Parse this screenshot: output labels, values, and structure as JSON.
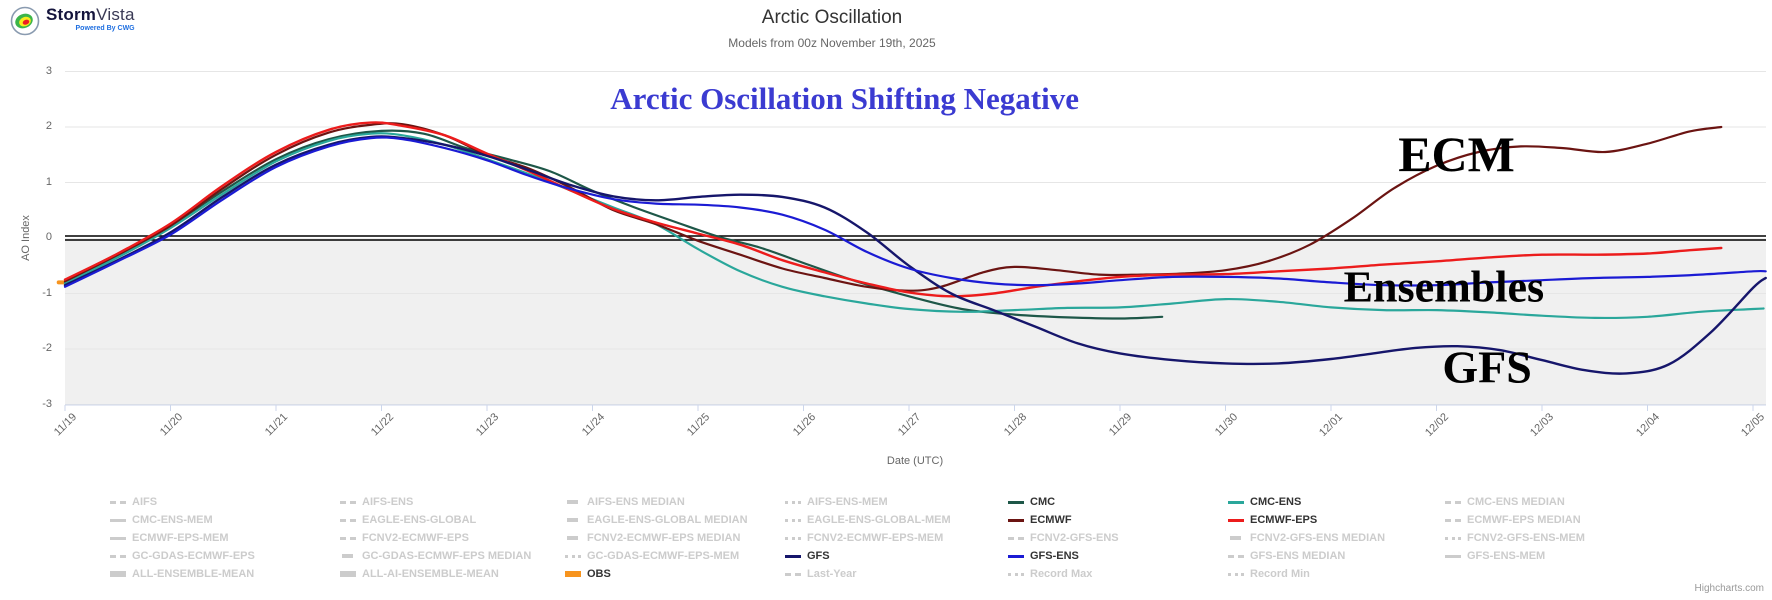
{
  "logo": {
    "brand_storm": "Storm",
    "brand_vista": "Vista",
    "tagline": "Powered By CWG"
  },
  "header": {
    "title": "Arctic Oscillation",
    "subtitle": "Models from 00z November 19th, 2025"
  },
  "credit": "Highcharts.com",
  "chart_data": {
    "type": "line",
    "title": "Arctic Oscillation",
    "subtitle": "Models from 00z November 19th, 2025",
    "xlabel": "Date (UTC)",
    "ylabel": "AO Index",
    "ylim": [
      -3,
      3
    ],
    "yticks": [
      "3",
      "2",
      "1",
      "0",
      "-1",
      "-2",
      "-3"
    ],
    "x_tick_labels": [
      "11/19",
      "11/20",
      "11/21",
      "11/22",
      "11/23",
      "11/24",
      "11/25",
      "11/26",
      "11/27",
      "11/28",
      "11/29",
      "11/30",
      "12/01",
      "12/02",
      "12/03",
      "12/04",
      "12/05"
    ],
    "x_unit_days_from": "11/19 00z",
    "negative_region_shaded": true,
    "zero_line_color": "#000000",
    "band_color": "#f0f0f0",
    "grid_color": "#e6e6e6",
    "axis_line_color": "#ccd6eb",
    "label_color": "#666666",
    "series": [
      {
        "name": "OBS",
        "color": "#f7941e",
        "width": 4,
        "points": [
          [
            -0.06,
            -0.8
          ],
          [
            0,
            -0.8
          ]
        ]
      },
      {
        "name": "CMC",
        "color": "#1e5748",
        "width": 2.2,
        "points": [
          [
            0,
            -0.8
          ],
          [
            0.5,
            -0.33
          ],
          [
            1,
            0.22
          ],
          [
            1.5,
            0.85
          ],
          [
            2,
            1.42
          ],
          [
            2.5,
            1.78
          ],
          [
            3,
            1.93
          ],
          [
            3.4,
            1.88
          ],
          [
            3.8,
            1.62
          ],
          [
            4.2,
            1.42
          ],
          [
            4.6,
            1.2
          ],
          [
            5,
            0.85
          ],
          [
            5.4,
            0.55
          ],
          [
            5.8,
            0.28
          ],
          [
            6.2,
            0.02
          ],
          [
            6.6,
            -0.18
          ],
          [
            7,
            -0.45
          ],
          [
            7.5,
            -0.78
          ],
          [
            8,
            -1.05
          ],
          [
            8.5,
            -1.28
          ],
          [
            9,
            -1.38
          ],
          [
            9.5,
            -1.43
          ],
          [
            10,
            -1.45
          ],
          [
            10.4,
            -1.42
          ]
        ]
      },
      {
        "name": "CMC-ENS",
        "color": "#2aa79b",
        "width": 2.2,
        "points": [
          [
            0,
            -0.82
          ],
          [
            0.5,
            -0.35
          ],
          [
            1,
            0.18
          ],
          [
            1.5,
            0.8
          ],
          [
            2,
            1.38
          ],
          [
            2.5,
            1.75
          ],
          [
            2.9,
            1.88
          ],
          [
            3.2,
            1.85
          ],
          [
            3.6,
            1.68
          ],
          [
            4,
            1.42
          ],
          [
            4.4,
            1.15
          ],
          [
            4.8,
            0.85
          ],
          [
            5.2,
            0.55
          ],
          [
            5.6,
            0.25
          ],
          [
            6,
            -0.2
          ],
          [
            6.4,
            -0.6
          ],
          [
            6.8,
            -0.88
          ],
          [
            7.2,
            -1.05
          ],
          [
            7.6,
            -1.18
          ],
          [
            8,
            -1.28
          ],
          [
            8.5,
            -1.33
          ],
          [
            9,
            -1.3
          ],
          [
            9.5,
            -1.26
          ],
          [
            10,
            -1.25
          ],
          [
            10.5,
            -1.18
          ],
          [
            11,
            -1.1
          ],
          [
            11.5,
            -1.15
          ],
          [
            12,
            -1.25
          ],
          [
            12.5,
            -1.3
          ],
          [
            13,
            -1.3
          ],
          [
            13.5,
            -1.34
          ],
          [
            14,
            -1.4
          ],
          [
            14.5,
            -1.44
          ],
          [
            15,
            -1.42
          ],
          [
            15.5,
            -1.33
          ],
          [
            16,
            -1.28
          ],
          [
            16.1,
            -1.27
          ]
        ]
      },
      {
        "name": "ECMWF",
        "color": "#6b1412",
        "width": 2.2,
        "points": [
          [
            0,
            -0.78
          ],
          [
            0.5,
            -0.3
          ],
          [
            1,
            0.22
          ],
          [
            1.5,
            0.9
          ],
          [
            2,
            1.5
          ],
          [
            2.5,
            1.9
          ],
          [
            2.9,
            2.04
          ],
          [
            3.2,
            2.05
          ],
          [
            3.6,
            1.85
          ],
          [
            4,
            1.5
          ],
          [
            4.4,
            1.25
          ],
          [
            4.8,
            0.9
          ],
          [
            5.2,
            0.5
          ],
          [
            5.6,
            0.25
          ],
          [
            6,
            -0.05
          ],
          [
            6.4,
            -0.3
          ],
          [
            6.8,
            -0.55
          ],
          [
            7.2,
            -0.72
          ],
          [
            7.6,
            -0.88
          ],
          [
            8,
            -0.95
          ],
          [
            8.3,
            -0.88
          ],
          [
            8.7,
            -0.62
          ],
          [
            9,
            -0.52
          ],
          [
            9.4,
            -0.58
          ],
          [
            9.8,
            -0.66
          ],
          [
            10.2,
            -0.66
          ],
          [
            10.6,
            -0.64
          ],
          [
            11,
            -0.58
          ],
          [
            11.4,
            -0.42
          ],
          [
            11.8,
            -0.12
          ],
          [
            12.2,
            0.35
          ],
          [
            12.6,
            0.9
          ],
          [
            13,
            1.3
          ],
          [
            13.4,
            1.55
          ],
          [
            13.8,
            1.65
          ],
          [
            14.2,
            1.62
          ],
          [
            14.6,
            1.55
          ],
          [
            15,
            1.7
          ],
          [
            15.4,
            1.92
          ],
          [
            15.7,
            2.0
          ]
        ]
      },
      {
        "name": "ECMWF-EPS",
        "color": "#ec1c1c",
        "width": 2.4,
        "points": [
          [
            0,
            -0.75
          ],
          [
            0.5,
            -0.28
          ],
          [
            1,
            0.26
          ],
          [
            1.5,
            0.95
          ],
          [
            2,
            1.55
          ],
          [
            2.5,
            1.95
          ],
          [
            2.9,
            2.08
          ],
          [
            3.2,
            2.02
          ],
          [
            3.6,
            1.85
          ],
          [
            4,
            1.52
          ],
          [
            4.4,
            1.2
          ],
          [
            4.8,
            0.85
          ],
          [
            5.2,
            0.52
          ],
          [
            5.6,
            0.28
          ],
          [
            6,
            0.08
          ],
          [
            6.4,
            -0.12
          ],
          [
            6.8,
            -0.4
          ],
          [
            7.2,
            -0.62
          ],
          [
            7.6,
            -0.82
          ],
          [
            8,
            -0.98
          ],
          [
            8.4,
            -1.05
          ],
          [
            8.8,
            -1.0
          ],
          [
            9.2,
            -0.88
          ],
          [
            9.6,
            -0.78
          ],
          [
            10,
            -0.7
          ],
          [
            10.5,
            -0.66
          ],
          [
            11,
            -0.65
          ],
          [
            11.5,
            -0.6
          ],
          [
            12,
            -0.55
          ],
          [
            12.5,
            -0.48
          ],
          [
            13,
            -0.42
          ],
          [
            13.5,
            -0.35
          ],
          [
            14,
            -0.3
          ],
          [
            14.5,
            -0.3
          ],
          [
            15,
            -0.28
          ],
          [
            15.4,
            -0.22
          ],
          [
            15.7,
            -0.18
          ]
        ]
      },
      {
        "name": "GFS",
        "color": "#16166b",
        "width": 2.4,
        "points": [
          [
            0,
            -0.85
          ],
          [
            0.5,
            -0.4
          ],
          [
            1,
            0.1
          ],
          [
            1.5,
            0.75
          ],
          [
            2,
            1.32
          ],
          [
            2.5,
            1.68
          ],
          [
            2.9,
            1.82
          ],
          [
            3.2,
            1.8
          ],
          [
            3.6,
            1.68
          ],
          [
            4,
            1.48
          ],
          [
            4.4,
            1.22
          ],
          [
            4.8,
            0.95
          ],
          [
            5.2,
            0.75
          ],
          [
            5.6,
            0.68
          ],
          [
            6,
            0.74
          ],
          [
            6.4,
            0.78
          ],
          [
            6.8,
            0.74
          ],
          [
            7.2,
            0.55
          ],
          [
            7.6,
            0.1
          ],
          [
            8,
            -0.5
          ],
          [
            8.4,
            -1.0
          ],
          [
            8.8,
            -1.3
          ],
          [
            9.2,
            -1.6
          ],
          [
            9.6,
            -1.9
          ],
          [
            10,
            -2.08
          ],
          [
            10.5,
            -2.2
          ],
          [
            11,
            -2.26
          ],
          [
            11.5,
            -2.26
          ],
          [
            12,
            -2.18
          ],
          [
            12.4,
            -2.08
          ],
          [
            12.8,
            -1.98
          ],
          [
            13.2,
            -1.95
          ],
          [
            13.6,
            -2.02
          ],
          [
            14,
            -2.2
          ],
          [
            14.4,
            -2.38
          ],
          [
            14.8,
            -2.44
          ],
          [
            15.2,
            -2.28
          ],
          [
            15.6,
            -1.7
          ],
          [
            16,
            -0.9
          ],
          [
            16.12,
            -0.72
          ]
        ]
      },
      {
        "name": "GFS-ENS",
        "color": "#1b1bd4",
        "width": 2.2,
        "points": [
          [
            0,
            -0.88
          ],
          [
            0.5,
            -0.42
          ],
          [
            1,
            0.06
          ],
          [
            1.5,
            0.7
          ],
          [
            2,
            1.28
          ],
          [
            2.5,
            1.65
          ],
          [
            2.9,
            1.8
          ],
          [
            3.2,
            1.78
          ],
          [
            3.6,
            1.62
          ],
          [
            4,
            1.4
          ],
          [
            4.4,
            1.12
          ],
          [
            4.8,
            0.88
          ],
          [
            5.2,
            0.7
          ],
          [
            5.6,
            0.62
          ],
          [
            6,
            0.6
          ],
          [
            6.4,
            0.55
          ],
          [
            6.8,
            0.42
          ],
          [
            7.2,
            0.15
          ],
          [
            7.6,
            -0.25
          ],
          [
            8,
            -0.55
          ],
          [
            8.4,
            -0.72
          ],
          [
            8.8,
            -0.82
          ],
          [
            9.2,
            -0.85
          ],
          [
            9.6,
            -0.82
          ],
          [
            10,
            -0.76
          ],
          [
            10.5,
            -0.7
          ],
          [
            11,
            -0.7
          ],
          [
            11.5,
            -0.73
          ],
          [
            12,
            -0.8
          ],
          [
            12.5,
            -0.85
          ],
          [
            13,
            -0.85
          ],
          [
            13.5,
            -0.8
          ],
          [
            14,
            -0.76
          ],
          [
            14.5,
            -0.72
          ],
          [
            15,
            -0.7
          ],
          [
            15.5,
            -0.66
          ],
          [
            16,
            -0.6
          ],
          [
            16.12,
            -0.6
          ]
        ]
      }
    ],
    "annotations": [
      {
        "id": "headline",
        "text": "Arctic Oscillation Shifting Negative",
        "x": 7.39,
        "y": 2.5,
        "color": "#3b3bd1",
        "size": 31
      },
      {
        "id": "ecm",
        "text": "ECM",
        "x": 13.19,
        "y": 1.51,
        "color": "#000000",
        "size": 50
      },
      {
        "id": "ensembles",
        "text": "Ensembles",
        "x": 13.07,
        "y": -0.88,
        "color": "#000000",
        "size": 44
      },
      {
        "id": "gfs",
        "text": "GFS",
        "x": 13.48,
        "y": -2.33,
        "color": "#000000",
        "size": 46
      }
    ],
    "legend_position": "bottom"
  },
  "legend": {
    "active_text_color": "#333333",
    "disabled_color": "#cccccc",
    "rows": [
      [
        {
          "label": "AIFS",
          "style": "dashdot",
          "active": false
        },
        {
          "label": "AIFS-ENS",
          "style": "dashdot",
          "active": false
        },
        {
          "label": "AIFS-ENS MEDIAN",
          "style": "dash",
          "active": false
        },
        {
          "label": "AIFS-ENS-MEM",
          "style": "dotted",
          "active": false
        },
        {
          "label": "CMC",
          "style": "solid",
          "color": "#1e5748",
          "active": true
        },
        {
          "label": "CMC-ENS",
          "style": "solid",
          "color": "#2aa79b",
          "active": true
        },
        {
          "label": "CMC-ENS MEDIAN",
          "style": "dashdot",
          "active": false
        }
      ],
      [
        {
          "label": "CMC-ENS-MEM",
          "style": "solid",
          "active": false
        },
        {
          "label": "EAGLE-ENS-GLOBAL",
          "style": "dashdot",
          "active": false
        },
        {
          "label": "EAGLE-ENS-GLOBAL MEDIAN",
          "style": "dash",
          "active": false
        },
        {
          "label": "EAGLE-ENS-GLOBAL-MEM",
          "style": "dotted",
          "active": false
        },
        {
          "label": "ECMWF",
          "style": "solid",
          "color": "#6b1412",
          "active": true
        },
        {
          "label": "ECMWF-EPS",
          "style": "solid",
          "color": "#ec1c1c",
          "active": true
        },
        {
          "label": "ECMWF-EPS MEDIAN",
          "style": "dashdot",
          "active": false
        }
      ],
      [
        {
          "label": "ECMWF-EPS-MEM",
          "style": "solid",
          "active": false
        },
        {
          "label": "FCNV2-ECMWF-EPS",
          "style": "dashdot",
          "active": false
        },
        {
          "label": "FCNV2-ECMWF-EPS MEDIAN",
          "style": "dash",
          "active": false
        },
        {
          "label": "FCNV2-ECMWF-EPS-MEM",
          "style": "dotted",
          "active": false
        },
        {
          "label": "FCNV2-GFS-ENS",
          "style": "dashdot",
          "active": false
        },
        {
          "label": "FCNV2-GFS-ENS MEDIAN",
          "style": "dash",
          "active": false
        },
        {
          "label": "FCNV2-GFS-ENS-MEM",
          "style": "dotted",
          "active": false
        }
      ],
      [
        {
          "label": "GC-GDAS-ECMWF-EPS",
          "style": "dashdot",
          "active": false
        },
        {
          "label": "GC-GDAS-ECMWF-EPS MEDIAN",
          "style": "dash",
          "active": false
        },
        {
          "label": "GC-GDAS-ECMWF-EPS-MEM",
          "style": "dotted",
          "active": false
        },
        {
          "label": "GFS",
          "style": "solid",
          "color": "#16166b",
          "active": true
        },
        {
          "label": "GFS-ENS",
          "style": "solid",
          "color": "#1b1bd4",
          "active": true
        },
        {
          "label": "GFS-ENS MEDIAN",
          "style": "dashdot",
          "active": false
        },
        {
          "label": "GFS-ENS-MEM",
          "style": "solid",
          "active": false
        }
      ],
      [
        {
          "label": "ALL-ENSEMBLE-MEAN",
          "style": "bar",
          "active": false
        },
        {
          "label": "ALL-AI-ENSEMBLE-MEAN",
          "style": "bar",
          "active": false
        },
        {
          "label": "OBS",
          "style": "bar",
          "color": "#f7941e",
          "active": true
        },
        {
          "label": "Last-Year",
          "style": "dashdot",
          "active": false
        },
        {
          "label": "Record Max",
          "style": "dotted",
          "active": false
        },
        {
          "label": "Record Min",
          "style": "dotted",
          "active": false
        }
      ]
    ]
  }
}
